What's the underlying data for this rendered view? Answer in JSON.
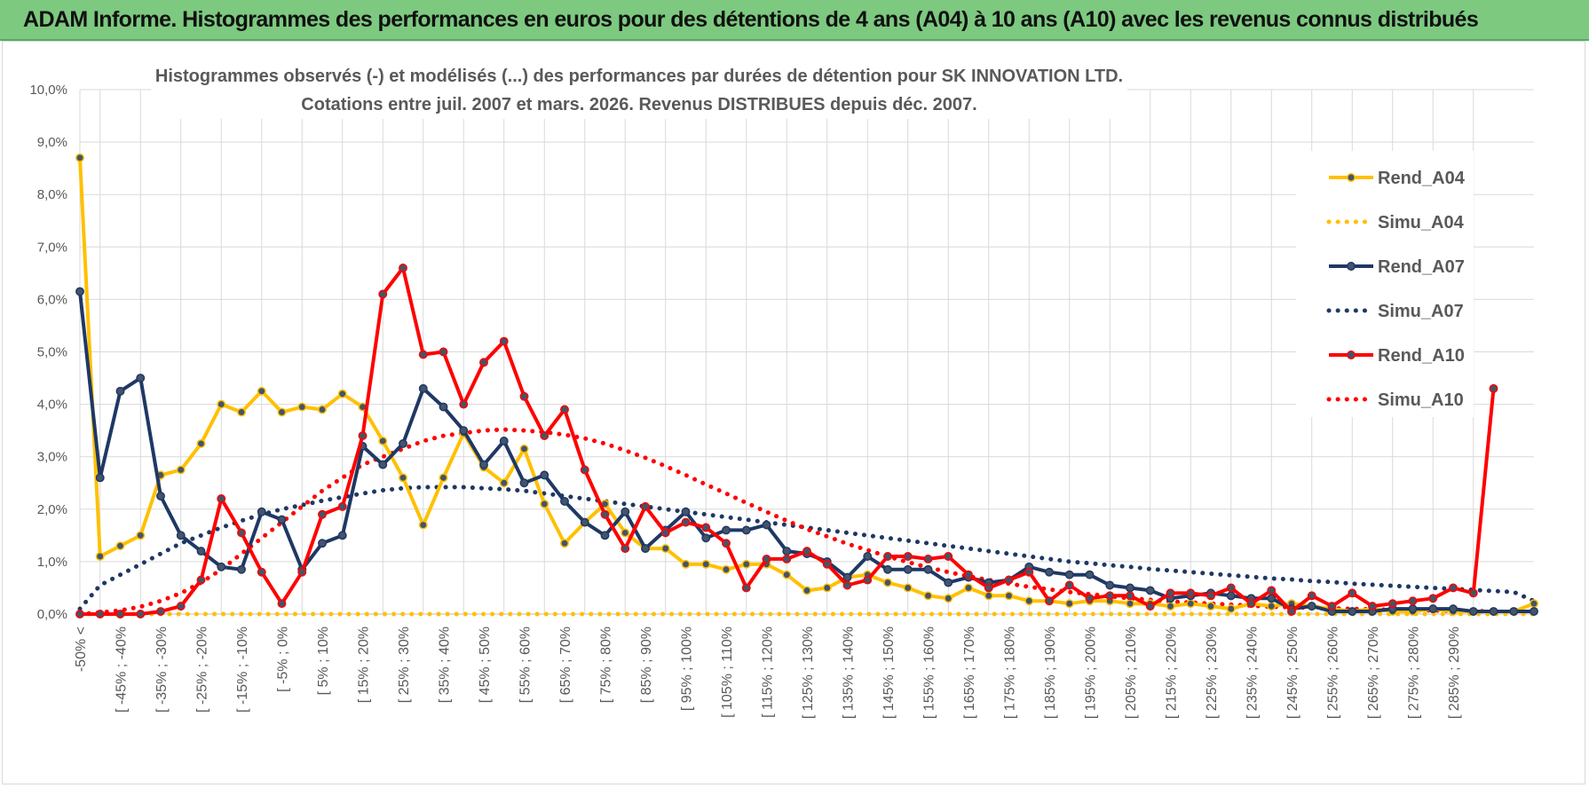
{
  "header": {
    "title": "ADAM Informe. Histogrammes des performances en euros pour des détentions de 4 ans (A04) à 10 ans (A10) avec les revenus connus distribués"
  },
  "chart_data": {
    "type": "line",
    "title": "Histogrammes observés (-) et modélisés (...) des performances par durées de détention pour SK INNOVATION LTD.",
    "subtitle": "Cotations entre juil. 2007 et mars. 2026.  Revenus DISTRIBUES depuis déc. 2007.",
    "ylim": [
      0,
      10
    ],
    "y_ticks": [
      "0,0%",
      "1,0%",
      "2,0%",
      "3,0%",
      "4,0%",
      "5,0%",
      "6,0%",
      "7,0%",
      "8,0%",
      "9,0%",
      "10,0%"
    ],
    "x_tick_labels": [
      "-50% <",
      "[ -45% ; -40%",
      "[ -35% ; -30%",
      "[ -25% ; -20%",
      "[ -15% ; -10%",
      "[ -5% ; 0%",
      "[ 5% ; 10%",
      "[ 15% ; 20%",
      "[ 25% ; 30%",
      "[ 35% ; 40%",
      "[ 45% ; 50%",
      "[ 55% ; 60%",
      "[ 65% ; 70%",
      "[ 75% ; 80%",
      "[ 85% ; 90%",
      "[ 95% ; 100%",
      "[ 105% ; 110%",
      "[ 115% ; 120%",
      "[ 125% ; 130%",
      "[ 135% ; 140%",
      "[ 145% ; 150%",
      "[ 155% ; 160%",
      "[ 165% ; 170%",
      "[ 175% ; 180%",
      "[ 185% ; 190%",
      "[ 195% ; 200%",
      "[ 205% ; 210%",
      "[ 215% ; 220%",
      "[ 225% ; 230%",
      "[ 235% ; 240%",
      "[ 245% ; 250%",
      "[ 255% ; 260%",
      "[ 265% ; 270%",
      "[ 275% ; 280%",
      "[ 285% ; 290%"
    ],
    "grid": true,
    "legend_position": "right",
    "series": [
      {
        "name": "Rend_A04",
        "style": "solid",
        "color": "#ffc000",
        "values": [
          8.7,
          1.1,
          1.3,
          1.5,
          2.65,
          2.75,
          3.25,
          4.0,
          3.85,
          4.25,
          3.85,
          3.95,
          3.9,
          4.2,
          3.95,
          3.3,
          2.6,
          1.7,
          2.6,
          3.45,
          2.8,
          2.5,
          3.15,
          2.1,
          1.35,
          1.75,
          2.1,
          1.55,
          1.25,
          1.25,
          0.95,
          0.95,
          0.85,
          0.95,
          0.95,
          0.75,
          0.45,
          0.5,
          0.7,
          0.75,
          0.6,
          0.5,
          0.35,
          0.3,
          0.5,
          0.35,
          0.35,
          0.25,
          0.25,
          0.2,
          0.25,
          0.25,
          0.2,
          0.2,
          0.15,
          0.2,
          0.15,
          0.1,
          0.2,
          0.15,
          0.2,
          0.15,
          0.1,
          0.05,
          0.1,
          0.05,
          0.05,
          0.1,
          0.05,
          0.05,
          0.05,
          0.05,
          0.2
        ]
      },
      {
        "name": "Simu_A04",
        "style": "dotted",
        "color": "#ffc000",
        "values": [
          0.0,
          0.0,
          0.0,
          0.0,
          0.0,
          0.0,
          0.0,
          0.0,
          0.0,
          0.0,
          0.0,
          0.0,
          0.0,
          0.0,
          0.0,
          0.0,
          0.0,
          0.0,
          0.0,
          0.0,
          0.0,
          0.0,
          0.0,
          0.0,
          0.0,
          0.0,
          0.0,
          0.0,
          0.0,
          0.0,
          0.0,
          0.0,
          0.0,
          0.0,
          0.0,
          0.0,
          0.0,
          0.0,
          0.0,
          0.0,
          0.0,
          0.0,
          0.0,
          0.0,
          0.0,
          0.0,
          0.0,
          0.0,
          0.0,
          0.0,
          0.0,
          0.0,
          0.0,
          0.0,
          0.0,
          0.0,
          0.0,
          0.0,
          0.0,
          0.0,
          0.0,
          0.0,
          0.0,
          0.0,
          0.0,
          0.0,
          0.0,
          0.0,
          0.0,
          0.0,
          0.0,
          0.0,
          0.0
        ]
      },
      {
        "name": "Rend_A07",
        "style": "solid",
        "color": "#1f3864",
        "values": [
          6.15,
          2.6,
          4.25,
          4.5,
          2.25,
          1.5,
          1.2,
          0.9,
          0.85,
          1.95,
          1.8,
          0.85,
          1.35,
          1.5,
          3.2,
          2.85,
          3.25,
          4.3,
          3.95,
          3.5,
          2.85,
          3.3,
          2.5,
          2.65,
          2.15,
          1.75,
          1.5,
          1.95,
          1.25,
          1.6,
          1.95,
          1.45,
          1.6,
          1.6,
          1.7,
          1.2,
          1.15,
          1.0,
          0.7,
          1.1,
          0.85,
          0.85,
          0.85,
          0.6,
          0.7,
          0.6,
          0.65,
          0.9,
          0.8,
          0.75,
          0.75,
          0.55,
          0.5,
          0.45,
          0.3,
          0.35,
          0.4,
          0.35,
          0.3,
          0.3,
          0.1,
          0.15,
          0.05,
          0.05,
          0.05,
          0.1,
          0.1,
          0.1,
          0.1,
          0.05,
          0.05,
          0.05,
          0.05
        ]
      },
      {
        "name": "Simu_A07",
        "style": "dotted",
        "color": "#1f3864",
        "values": [
          0.1,
          0.55,
          0.75,
          0.95,
          1.15,
          1.35,
          1.5,
          1.65,
          1.78,
          1.9,
          2.0,
          2.08,
          2.16,
          2.23,
          2.3,
          2.36,
          2.4,
          2.42,
          2.42,
          2.42,
          2.4,
          2.38,
          2.35,
          2.3,
          2.25,
          2.2,
          2.15,
          2.1,
          2.05,
          2.0,
          1.95,
          1.9,
          1.85,
          1.8,
          1.75,
          1.7,
          1.65,
          1.6,
          1.55,
          1.5,
          1.45,
          1.4,
          1.35,
          1.3,
          1.25,
          1.2,
          1.15,
          1.1,
          1.05,
          1.0,
          0.97,
          0.93,
          0.9,
          0.86,
          0.83,
          0.8,
          0.77,
          0.74,
          0.71,
          0.68,
          0.66,
          0.63,
          0.61,
          0.58,
          0.56,
          0.54,
          0.52,
          0.5,
          0.48,
          0.46,
          0.44,
          0.42,
          0.25
        ]
      },
      {
        "name": "Rend_A10",
        "style": "solid",
        "color": "#ff0000",
        "values": [
          0.0,
          0.0,
          0.0,
          0.0,
          0.05,
          0.15,
          0.65,
          2.2,
          1.55,
          0.8,
          0.2,
          0.8,
          1.9,
          2.05,
          3.4,
          6.1,
          6.6,
          4.95,
          5.0,
          4.0,
          4.8,
          5.2,
          4.15,
          3.4,
          3.9,
          2.75,
          1.9,
          1.25,
          2.05,
          1.55,
          1.75,
          1.65,
          1.35,
          0.5,
          1.05,
          1.05,
          1.2,
          0.95,
          0.55,
          0.65,
          1.1,
          1.1,
          1.05,
          1.1,
          0.75,
          0.5,
          0.65,
          0.8,
          0.25,
          0.55,
          0.3,
          0.35,
          0.35,
          0.15,
          0.4,
          0.4,
          0.35,
          0.5,
          0.2,
          0.45,
          0.05,
          0.35,
          0.15,
          0.4,
          0.15,
          0.2,
          0.25,
          0.3,
          0.5,
          0.4,
          4.3
        ]
      },
      {
        "name": "Simu_A10",
        "style": "dotted",
        "color": "#ff0000",
        "values": [
          0.0,
          0.03,
          0.07,
          0.14,
          0.25,
          0.4,
          0.6,
          0.85,
          1.15,
          1.45,
          1.75,
          2.05,
          2.35,
          2.6,
          2.85,
          3.0,
          3.15,
          3.3,
          3.4,
          3.45,
          3.5,
          3.52,
          3.5,
          3.47,
          3.42,
          3.35,
          3.25,
          3.12,
          2.98,
          2.82,
          2.65,
          2.47,
          2.3,
          2.12,
          1.95,
          1.78,
          1.62,
          1.48,
          1.34,
          1.22,
          1.1,
          0.99,
          0.89,
          0.8,
          0.72,
          0.65,
          0.58,
          0.52,
          0.47,
          0.42,
          0.38,
          0.34,
          0.3,
          0.27,
          0.24,
          0.22,
          0.2,
          0.18,
          0.16,
          0.14,
          0.13,
          0.12,
          0.11,
          0.1,
          0.09,
          0.08,
          0.07,
          0.07,
          0.06,
          0.06,
          0.05
        ]
      }
    ]
  }
}
